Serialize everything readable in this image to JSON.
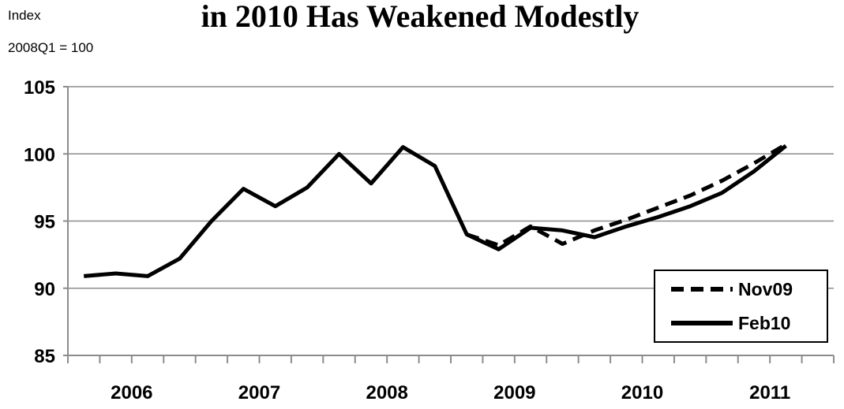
{
  "chart_data": {
    "type": "line",
    "title": "in 2010 Has Weakened Modestly",
    "ylabel_line1": "Index",
    "ylabel_line2": "2008Q1 = 100",
    "ylim": [
      85,
      105
    ],
    "yticks": [
      85,
      90,
      95,
      100,
      105
    ],
    "xticks": [
      "2006",
      "2007",
      "2008",
      "2009",
      "2010",
      "2011"
    ],
    "grid": true,
    "legend_position": "bottom-right",
    "quarters_start": "2006Q1",
    "series": [
      {
        "name": "Nov09",
        "style": "dashed",
        "color": "#000000",
        "values": [
          null,
          null,
          null,
          null,
          null,
          null,
          null,
          null,
          null,
          null,
          null,
          null,
          94.0,
          93.2,
          94.6,
          93.3,
          94.3,
          95.1,
          96.0,
          96.9,
          98.0,
          99.3,
          100.7
        ]
      },
      {
        "name": "Feb10",
        "style": "solid",
        "color": "#000000",
        "values": [
          90.9,
          91.1,
          90.9,
          92.2,
          95.0,
          97.4,
          96.1,
          97.5,
          100.0,
          97.8,
          100.5,
          99.1,
          94.0,
          92.9,
          94.5,
          94.3,
          93.8,
          94.6,
          95.3,
          96.1,
          97.1,
          98.7,
          100.6
        ]
      }
    ]
  }
}
